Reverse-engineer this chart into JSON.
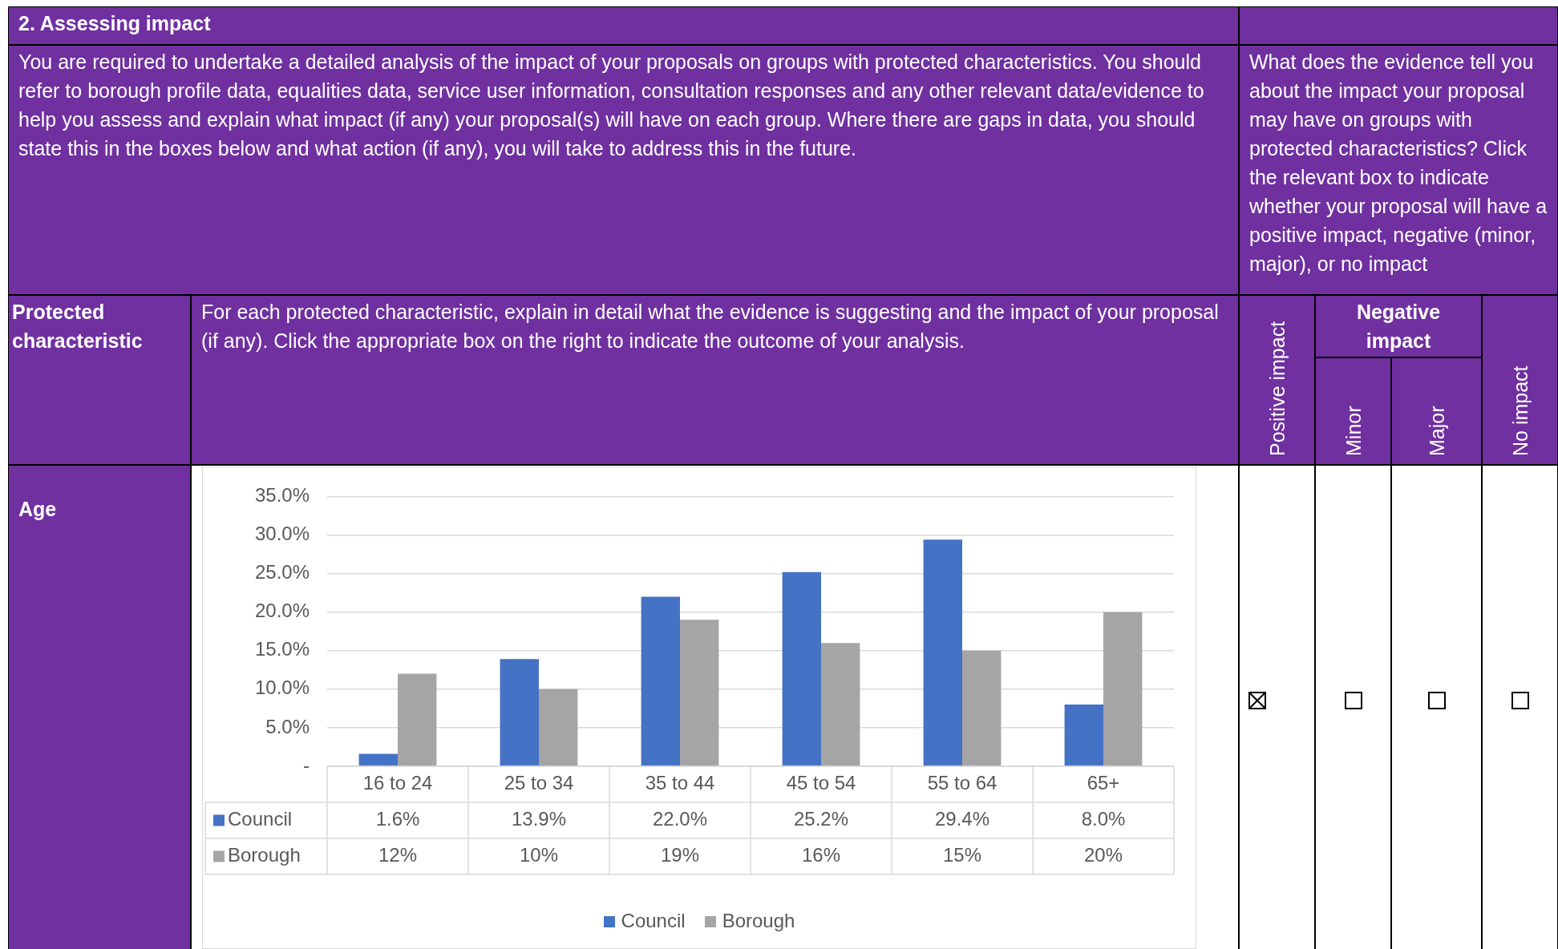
{
  "chart_data": {
    "type": "bar",
    "title": "2. Assessing impact",
    "annotations": [
      "You are required to undertake a detailed analysis of the impact of your proposals on groups with protected characteristics. You should refer to borough profile data, equalities data, service user information, consultation responses and any other relevant data/evidence to help you assess and explain what impact (if any) your proposal(s) will have on each group.  Where there are gaps in data, you should state this in the boxes below and what action (if any), you will take to address this in the future.",
      "What does the evidence tell you about the impact your proposal may have on groups with protected characteristics? Click  the  relevant box  to indicate whether your proposal will have a positive impact, negative (minor, major), or no impact",
      "Protected characteristic",
      "For each protected characteristic, explain in detail what the evidence is suggesting and the impact of your proposal (if any). Click the appropriate box on the right to indicate the outcome of your analysis.",
      "Negative impact",
      "Positive impact",
      "Minor",
      "Major",
      "No impact",
      "Age"
    ],
    "categories": [
      "16 to 24",
      "25 to 34",
      "35 to 44",
      "45 to 54",
      "55 to 64",
      "65+"
    ],
    "series": [
      {
        "name": "Council",
        "color": "#4472c4",
        "values": [
          1.6,
          13.9,
          22.0,
          25.2,
          29.4,
          8.0
        ],
        "value_labels": [
          "1.6%",
          "13.9%",
          "22.0%",
          "25.2%",
          "29.4%",
          "8.0%"
        ]
      },
      {
        "name": "Borough",
        "color": "#a5a5a5",
        "values": [
          12,
          10,
          19,
          16,
          15,
          20
        ],
        "value_labels": [
          "12%",
          "10%",
          "19%",
          "16%",
          "15%",
          "20%"
        ]
      }
    ],
    "ylim": [
      0,
      35
    ],
    "yticks": [
      {
        "value": 0,
        "label": "-"
      },
      {
        "value": 5,
        "label": "5.0%"
      },
      {
        "value": 10,
        "label": "10.0%"
      },
      {
        "value": 15,
        "label": "15.0%"
      },
      {
        "value": 20,
        "label": "20.0%"
      },
      {
        "value": 25,
        "label": "25.0%"
      },
      {
        "value": 30,
        "label": "30.0%"
      },
      {
        "value": 35,
        "label": "35.0%"
      }
    ],
    "grid": "y",
    "legend": "bottom"
  }
}
